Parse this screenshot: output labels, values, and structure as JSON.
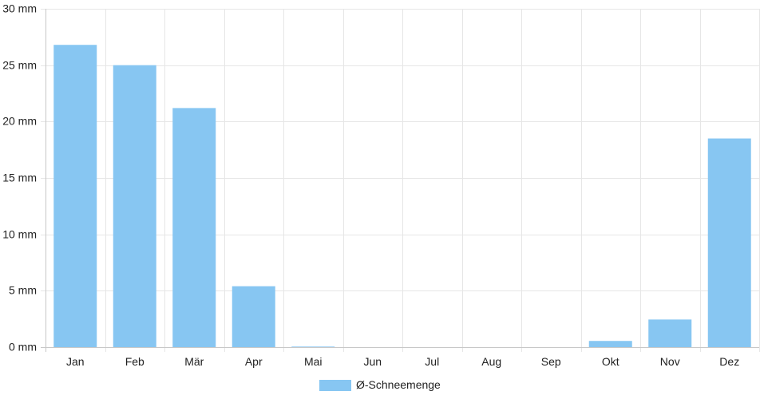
{
  "chart_data": {
    "type": "bar",
    "categories": [
      "Jan",
      "Feb",
      "Mär",
      "Apr",
      "Mai",
      "Jun",
      "Jul",
      "Aug",
      "Sep",
      "Okt",
      "Nov",
      "Dez"
    ],
    "series": [
      {
        "name": "Ø-Schneemenge",
        "values": [
          26.8,
          25.0,
          21.2,
          5.4,
          0.05,
          0,
          0,
          0,
          0,
          0.55,
          2.45,
          18.5
        ],
        "color": "#87c6f2"
      }
    ],
    "ylim": [
      0,
      30
    ],
    "yticks": [
      0,
      5,
      10,
      15,
      20,
      25,
      30
    ],
    "y_unit": "mm",
    "ytick_labels": [
      "0 mm",
      "5 mm",
      "10 mm",
      "15 mm",
      "20 mm",
      "25 mm",
      "30 mm"
    ],
    "grid": true,
    "legend_position": "bottom-center",
    "title": "",
    "xlabel": "",
    "ylabel": ""
  }
}
